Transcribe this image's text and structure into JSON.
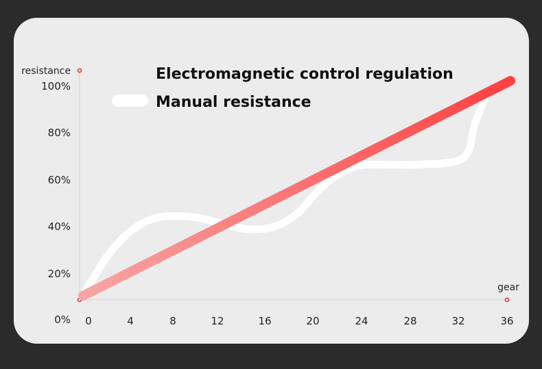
{
  "chart_data": {
    "type": "line",
    "xlabel": "gear",
    "ylabel": "resistance",
    "x_ticks": [
      "0",
      "4",
      "8",
      "12",
      "16",
      "20",
      "24",
      "28",
      "32",
      "36"
    ],
    "y_ticks": [
      "0%",
      "20%",
      "40%",
      "60%",
      "80%",
      "100%"
    ],
    "xlim": [
      0,
      36
    ],
    "ylim": [
      0,
      100
    ],
    "grid": false,
    "legend_position": "top",
    "series": [
      {
        "name": "Electromagnetic control regulation",
        "color": "#ff4444",
        "style": "gradient",
        "x": [
          0,
          36
        ],
        "y": [
          0,
          100
        ]
      },
      {
        "name": "Manual resistance",
        "color": "#ffffff",
        "style": "smooth",
        "x": [
          0,
          2,
          4,
          6,
          8,
          10,
          12,
          14,
          16,
          18,
          20,
          22,
          24,
          28,
          32,
          33,
          34,
          35,
          36
        ],
        "y": [
          0,
          18,
          30,
          36,
          37,
          36,
          33,
          31,
          32,
          38,
          50,
          58,
          61,
          61,
          64,
          80,
          93,
          98,
          99
        ]
      }
    ]
  }
}
